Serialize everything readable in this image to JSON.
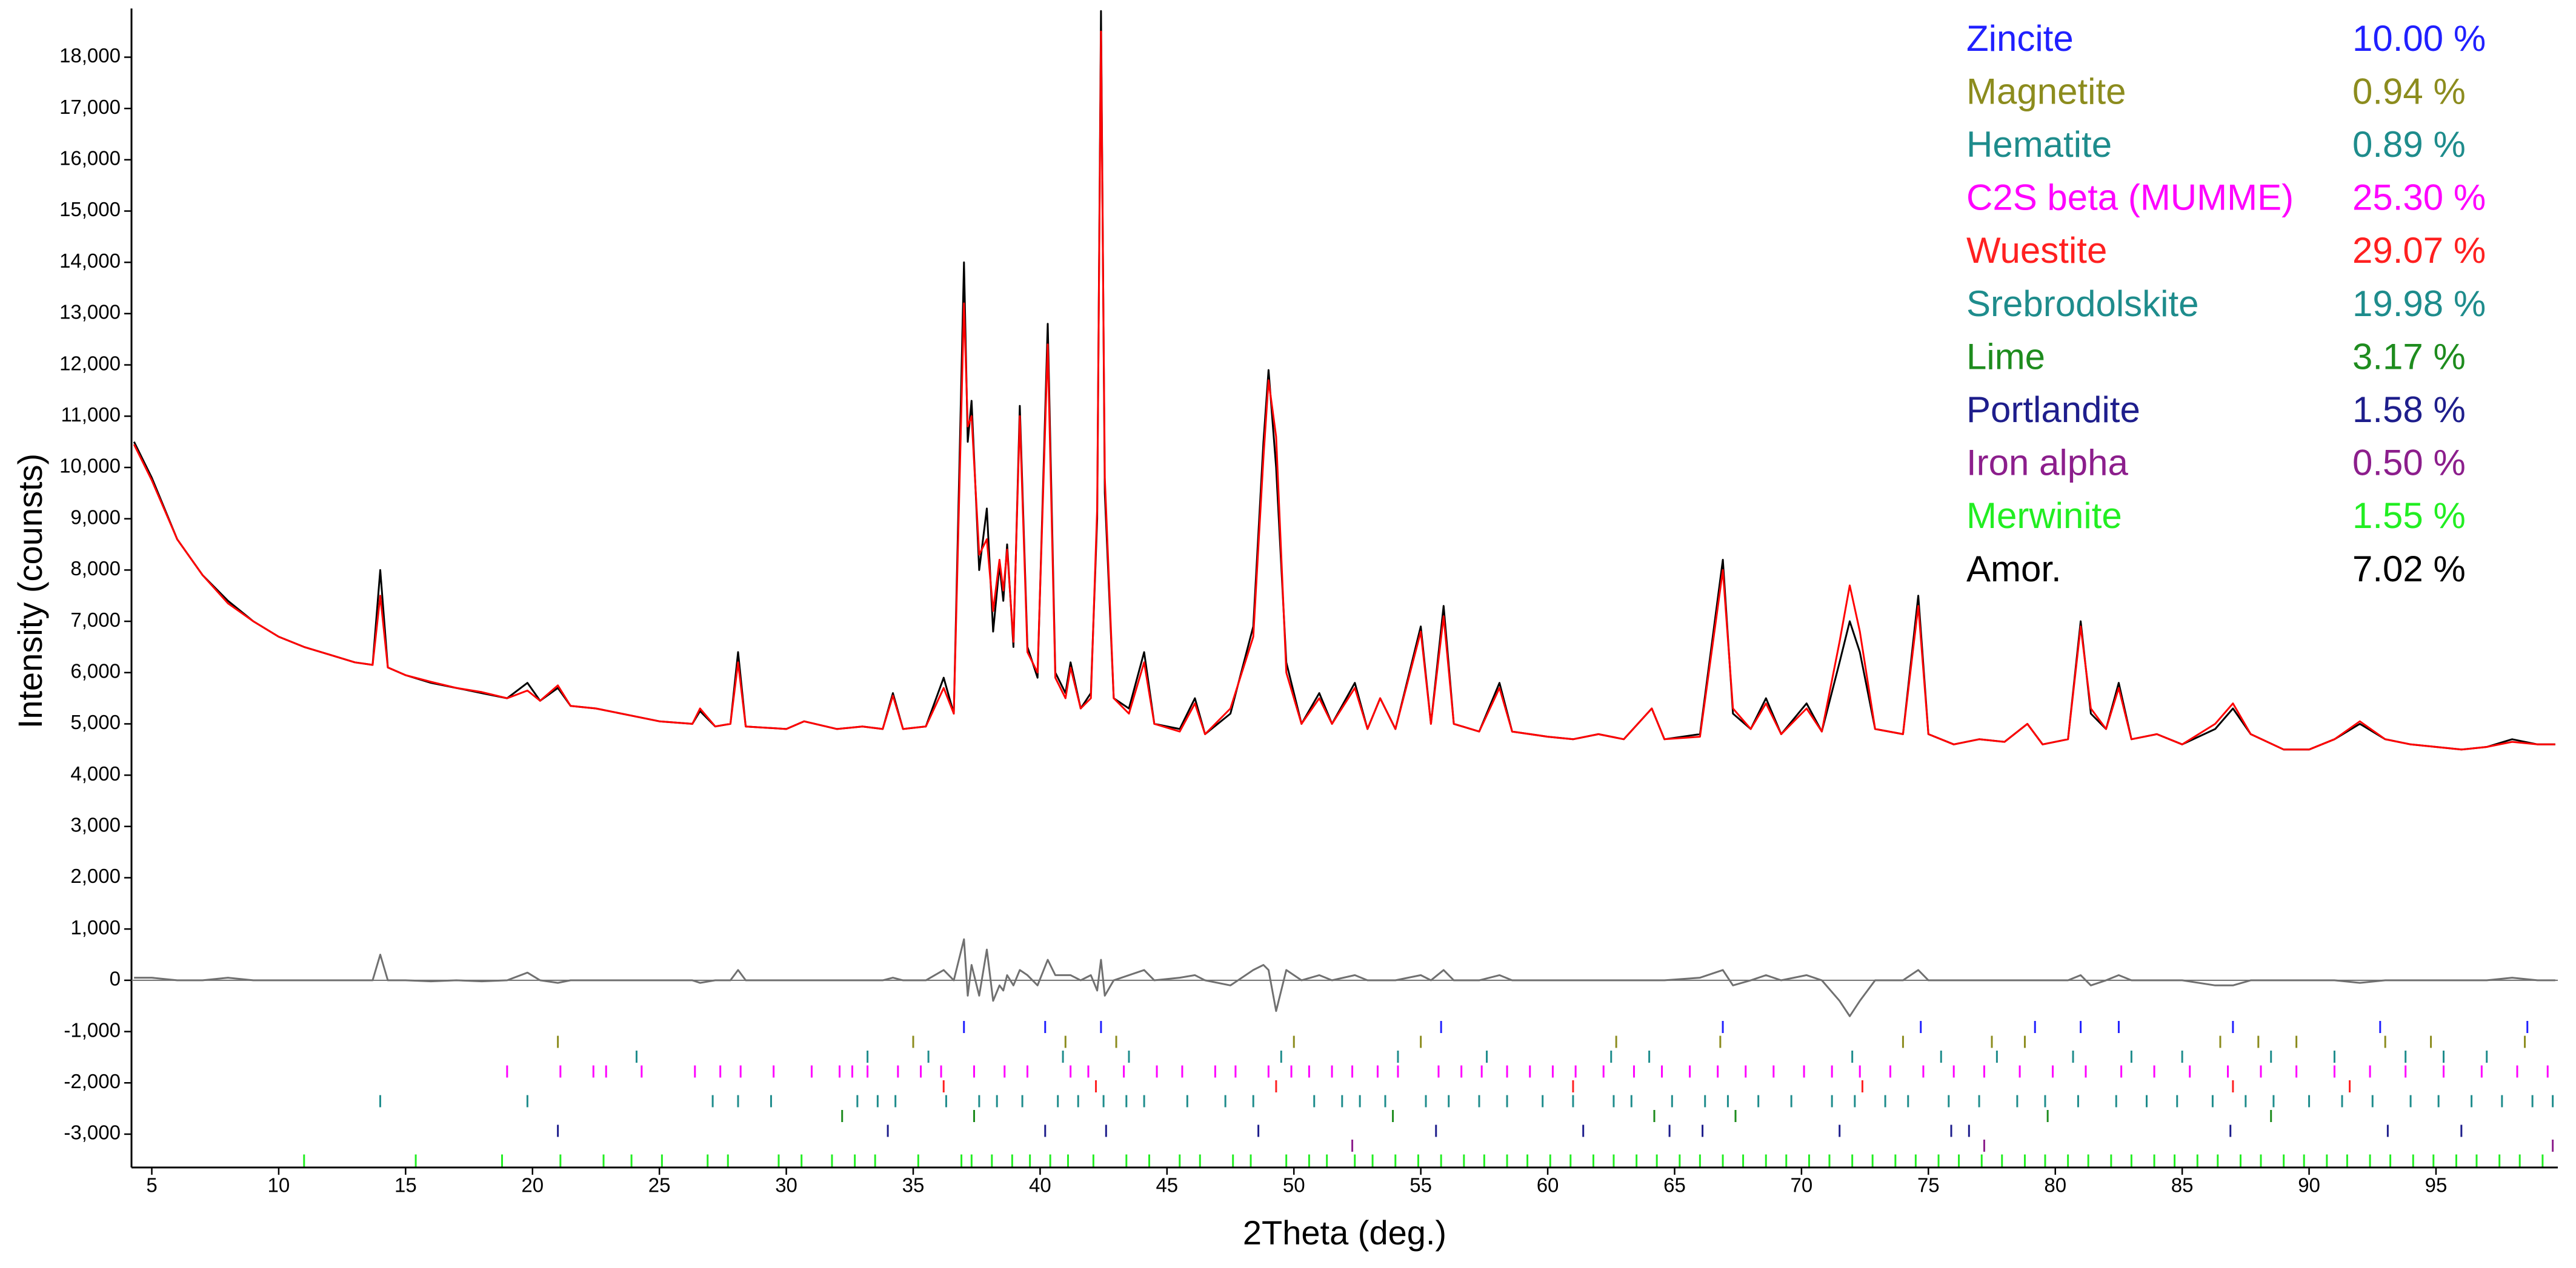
{
  "chart_data": {
    "type": "line",
    "xlabel": "2Theta (deg.)",
    "ylabel": "Intensity (counsts)",
    "xlim": [
      4.2,
      99.8
    ],
    "xticks": [
      5,
      10,
      15,
      20,
      25,
      30,
      35,
      40,
      45,
      50,
      55,
      60,
      65,
      70,
      75,
      80,
      85,
      90,
      95
    ],
    "ylim": [
      -3650,
      18950
    ],
    "yticks": [
      {
        "value": -3000,
        "label": "-3,000"
      },
      {
        "value": -2000,
        "label": "-2,000"
      },
      {
        "value": -1000,
        "label": "-1,000"
      },
      0,
      {
        "value": 1000,
        "label": "1,000"
      },
      {
        "value": 2000,
        "label": "2,000"
      },
      {
        "value": 3000,
        "label": "3,000"
      },
      {
        "value": 4000,
        "label": "4,000"
      },
      {
        "value": 5000,
        "label": "5,000"
      },
      {
        "value": 6000,
        "label": "6,000"
      },
      {
        "value": 7000,
        "label": "7,000"
      },
      {
        "value": 8000,
        "label": "8,000"
      },
      {
        "value": 9000,
        "label": "9,000"
      },
      {
        "value": 10000,
        "label": "10,000"
      },
      {
        "value": 11000,
        "label": "11,000"
      },
      {
        "value": 12000,
        "label": "12,000"
      },
      {
        "value": 13000,
        "label": "13,000"
      },
      {
        "value": 14000,
        "label": "14,000"
      },
      {
        "value": 15000,
        "label": "15,000"
      },
      {
        "value": 16000,
        "label": "16,000"
      },
      {
        "value": 17000,
        "label": "17,000"
      },
      {
        "value": 18000,
        "label": "18,000"
      }
    ],
    "x": [
      4.3,
      5,
      6,
      7,
      8,
      9,
      10,
      11,
      12,
      13,
      13.7,
      14.0,
      14.3,
      15,
      16,
      17,
      18,
      19,
      19.8,
      20.3,
      21.0,
      21.5,
      22.5,
      24,
      25,
      26.3,
      26.6,
      27.2,
      27.8,
      28.1,
      28.4,
      30,
      30.7,
      32,
      33,
      33.8,
      34.2,
      34.6,
      35.5,
      36.2,
      36.6,
      37.0,
      37.15,
      37.3,
      37.6,
      37.9,
      38.15,
      38.4,
      38.55,
      38.7,
      38.95,
      39.2,
      39.5,
      39.9,
      40.3,
      40.6,
      41.0,
      41.2,
      41.6,
      42.0,
      42.25,
      42.4,
      42.55,
      42.9,
      43.5,
      44.1,
      44.5,
      45.5,
      46.1,
      46.5,
      47.5,
      48.4,
      48.8,
      49.0,
      49.3,
      49.7,
      50.3,
      51.0,
      51.5,
      52.4,
      52.9,
      53.4,
      54.0,
      55.0,
      55.4,
      55.9,
      56.3,
      57.3,
      58.1,
      58.6,
      60,
      61,
      62,
      63,
      64.1,
      64.6,
      66,
      66.9,
      67.3,
      68,
      68.6,
      69.2,
      70.2,
      70.8,
      71.5,
      71.9,
      72.3,
      72.9,
      74.0,
      74.6,
      75.0,
      76,
      77,
      78,
      78.9,
      79.5,
      80.5,
      81.0,
      81.4,
      82.0,
      82.5,
      83.0,
      84.0,
      85.0,
      86.3,
      87.0,
      87.7,
      89,
      90,
      91,
      92.0,
      93,
      94,
      95,
      96,
      97,
      98,
      99,
      99.7
    ],
    "series": [
      {
        "color": "#000000",
        "values": [
          10500,
          9800,
          8600,
          7900,
          7400,
          7000,
          6700,
          6500,
          6350,
          6200,
          6150,
          8000,
          6100,
          5950,
          5800,
          5700,
          5600,
          5500,
          5800,
          5450,
          5700,
          5350,
          5300,
          5150,
          5050,
          5000,
          5250,
          4950,
          5000,
          6400,
          4950,
          4900,
          5050,
          4900,
          4950,
          4900,
          5600,
          4900,
          4950,
          5900,
          5200,
          14000,
          10500,
          11300,
          8000,
          9200,
          6800,
          8100,
          7400,
          8500,
          6500,
          11200,
          6500,
          5900,
          12800,
          6000,
          5600,
          6200,
          5300,
          5600,
          9000,
          18900,
          9500,
          5500,
          5300,
          6400,
          5000,
          4900,
          5500,
          4800,
          5200,
          6900,
          10500,
          11900,
          10000,
          6200,
          5000,
          5600,
          5000,
          5800,
          4900,
          5500,
          4900,
          6900,
          5000,
          7300,
          5000,
          4850,
          5800,
          4850,
          4750,
          4700,
          4800,
          4700,
          5300,
          4700,
          4800,
          8200,
          5200,
          4900,
          5500,
          4800,
          5400,
          4850,
          6200,
          7000,
          6400,
          4900,
          4800,
          7500,
          4800,
          4600,
          4700,
          4650,
          5000,
          4600,
          4700,
          7000,
          5200,
          4900,
          5800,
          4700,
          4800,
          4600,
          4900,
          5300,
          4800,
          4500,
          4500,
          4700,
          5000,
          4700,
          4600,
          4550,
          4500,
          4550,
          4700,
          4600,
          4600
        ]
      },
      {
        "color": "#ff0000",
        "values": [
          10450,
          9750,
          8600,
          7900,
          7350,
          7000,
          6700,
          6500,
          6350,
          6200,
          6150,
          7500,
          6100,
          5950,
          5820,
          5700,
          5620,
          5500,
          5650,
          5450,
          5750,
          5350,
          5300,
          5150,
          5050,
          5000,
          5300,
          4950,
          5000,
          6200,
          4950,
          4900,
          5050,
          4900,
          4950,
          4900,
          5550,
          4900,
          4950,
          5700,
          5200,
          13200,
          10800,
          11000,
          8300,
          8600,
          7200,
          8200,
          7600,
          8400,
          6600,
          11000,
          6400,
          6000,
          12400,
          5900,
          5500,
          6100,
          5300,
          5500,
          9200,
          18500,
          9800,
          5500,
          5200,
          6200,
          5000,
          4850,
          5400,
          4800,
          5300,
          6700,
          10200,
          11700,
          10600,
          6000,
          5000,
          5500,
          5000,
          5700,
          4900,
          5500,
          4900,
          6800,
          5000,
          7100,
          5000,
          4850,
          5700,
          4850,
          4750,
          4700,
          4800,
          4700,
          5300,
          4700,
          4750,
          8000,
          5300,
          4900,
          5400,
          4800,
          5300,
          4850,
          6600,
          7700,
          6800,
          4900,
          4800,
          7300,
          4800,
          4600,
          4700,
          4650,
          5000,
          4600,
          4700,
          6900,
          5300,
          4900,
          5700,
          4700,
          4800,
          4600,
          5000,
          5400,
          4800,
          4500,
          4500,
          4700,
          5050,
          4700,
          4600,
          4550,
          4500,
          4550,
          4650,
          4600,
          4600
        ]
      },
      {
        "color": "#707070",
        "values": [
          50,
          50,
          0,
          0,
          50,
          0,
          0,
          0,
          0,
          0,
          0,
          500,
          0,
          0,
          -20,
          0,
          -20,
          0,
          150,
          0,
          -50,
          0,
          0,
          0,
          0,
          0,
          -50,
          0,
          0,
          200,
          0,
          0,
          0,
          0,
          0,
          0,
          50,
          0,
          0,
          200,
          0,
          800,
          -300,
          300,
          -300,
          600,
          -400,
          -100,
          -200,
          100,
          -100,
          200,
          100,
          -100,
          400,
          100,
          100,
          100,
          0,
          100,
          -200,
          400,
          -300,
          0,
          100,
          200,
          0,
          50,
          100,
          0,
          -100,
          200,
          300,
          200,
          -600,
          200,
          0,
          100,
          0,
          100,
          0,
          0,
          0,
          100,
          0,
          200,
          0,
          0,
          100,
          0,
          0,
          0,
          0,
          0,
          0,
          0,
          50,
          200,
          -100,
          0,
          100,
          0,
          100,
          0,
          -400,
          -700,
          -400,
          0,
          0,
          200,
          0,
          0,
          0,
          0,
          0,
          0,
          0,
          100,
          -100,
          0,
          100,
          0,
          0,
          0,
          -100,
          -100,
          0,
          0,
          0,
          0,
          -50,
          0,
          0,
          0,
          0,
          0,
          50,
          0,
          0
        ]
      }
    ],
    "phases": [
      {
        "name": "Zincite",
        "color": "#2020ff",
        "value": 10.0,
        "value_label": "10.00 %",
        "positions": [
          37.0,
          40.2,
          42.4,
          55.8,
          66.9,
          74.7,
          79.2,
          81.0,
          82.5,
          87.0,
          92.8,
          98.6
        ]
      },
      {
        "name": "Magnetite",
        "color": "#8c8c1e",
        "value": 0.94,
        "value_label": "0.94 %",
        "positions": [
          21.0,
          35.0,
          41.0,
          43.0,
          50.0,
          55.0,
          62.7,
          66.8,
          74.0,
          77.5,
          78.8,
          86.5,
          88.0,
          89.5,
          93.0,
          94.8,
          98.5
        ]
      },
      {
        "name": "Hematite",
        "color": "#1e8c8c",
        "value": 0.89,
        "value_label": "0.89 %",
        "positions": [
          24.1,
          33.2,
          35.6,
          40.9,
          43.5,
          49.5,
          54.1,
          57.6,
          62.5,
          64.0,
          72.0,
          75.5,
          77.7,
          80.7,
          83.0,
          85.0,
          88.5,
          91.0,
          93.8,
          95.3,
          97.0
        ]
      },
      {
        "name": "C2S beta (MUMME)",
        "color": "#ff00ff",
        "value": 25.3,
        "value_label": "25.30 %",
        "positions": [
          19.0,
          21.1,
          22.4,
          22.9,
          24.3,
          26.4,
          27.4,
          28.2,
          29.5,
          31.0,
          32.1,
          32.6,
          33.2,
          34.4,
          35.3,
          36.1,
          37.4,
          38.6,
          39.5,
          41.2,
          41.9,
          43.3,
          44.6,
          45.6,
          46.9,
          47.7,
          49.0,
          49.9,
          50.6,
          51.5,
          52.3,
          53.3,
          54.1,
          55.7,
          56.6,
          57.4,
          58.4,
          59.3,
          60.2,
          61.1,
          62.2,
          63.4,
          64.5,
          65.6,
          66.7,
          67.8,
          68.9,
          70.1,
          71.2,
          72.3,
          73.5,
          74.8,
          76.0,
          77.2,
          78.6,
          79.9,
          81.2,
          82.6,
          83.9,
          85.3,
          86.8,
          88.1,
          89.5,
          91.0,
          92.4,
          93.8,
          95.3,
          96.8,
          98.2,
          99.4
        ]
      },
      {
        "name": "Wuestite",
        "color": "#ff2020",
        "value": 29.07,
        "value_label": "29.07 %",
        "positions": [
          36.2,
          42.2,
          49.3,
          61.0,
          72.4,
          87.0,
          91.6
        ]
      },
      {
        "name": "Srebrodolskite",
        "color": "#1e8c8c",
        "value": 19.98,
        "value_label": "19.98 %",
        "positions": [
          14.0,
          19.8,
          27.1,
          28.1,
          29.4,
          32.8,
          33.6,
          34.3,
          36.3,
          37.6,
          38.3,
          39.3,
          40.7,
          41.5,
          42.5,
          43.4,
          44.1,
          45.8,
          47.3,
          48.4,
          50.8,
          51.9,
          52.6,
          53.6,
          55.2,
          56.1,
          57.3,
          58.4,
          59.8,
          61.0,
          62.6,
          63.3,
          64.9,
          66.2,
          67.1,
          68.3,
          69.6,
          71.2,
          72.1,
          73.3,
          74.2,
          75.8,
          77.0,
          78.5,
          79.6,
          80.9,
          82.4,
          83.6,
          84.8,
          86.2,
          87.5,
          88.6,
          90.0,
          91.3,
          92.5,
          94.0,
          95.1,
          96.4,
          97.6,
          98.8,
          99.6
        ]
      },
      {
        "name": "Lime",
        "color": "#1e8c1e",
        "value": 3.17,
        "value_label": "3.17 %",
        "positions": [
          32.2,
          37.4,
          53.9,
          64.2,
          67.4,
          79.7,
          88.5
        ]
      },
      {
        "name": "Portlandite",
        "color": "#1e1e8c",
        "value": 1.58,
        "value_label": "1.58 %",
        "positions": [
          21.0,
          34.0,
          40.2,
          42.6,
          48.6,
          55.6,
          61.4,
          64.8,
          66.1,
          71.5,
          75.9,
          76.6,
          86.9,
          93.1,
          96.0
        ]
      },
      {
        "name": "Iron alpha",
        "color": "#8c1e8c",
        "value": 0.5,
        "value_label": "0.50 %",
        "positions": [
          52.3,
          77.2,
          99.6
        ]
      },
      {
        "name": "Merwinite",
        "color": "#22ee22",
        "value": 1.55,
        "value_label": "1.55 %",
        "positions": [
          11.0,
          15.4,
          18.8,
          21.1,
          22.8,
          23.9,
          25.1,
          26.9,
          27.7,
          29.7,
          30.6,
          31.8,
          32.7,
          33.5,
          35.2,
          36.9,
          37.3,
          38.1,
          38.9,
          39.6,
          40.4,
          41.1,
          42.1,
          43.4,
          44.3,
          45.5,
          46.3,
          47.6,
          48.3,
          49.7,
          50.6,
          51.3,
          52.4,
          53.1,
          54.0,
          54.9,
          55.8,
          56.7,
          57.5,
          58.4,
          59.2,
          60.1,
          60.9,
          61.8,
          62.6,
          63.5,
          64.3,
          65.2,
          66.0,
          66.9,
          67.7,
          68.6,
          69.4,
          70.3,
          71.1,
          72.0,
          72.8,
          73.7,
          74.5,
          75.4,
          76.2,
          77.1,
          77.9,
          78.8,
          79.6,
          80.5,
          81.3,
          82.2,
          83.0,
          83.9,
          84.7,
          85.6,
          86.4,
          87.3,
          88.1,
          89.0,
          89.8,
          90.7,
          91.5,
          92.4,
          93.2,
          94.1,
          94.9,
          95.8,
          96.6,
          97.5,
          98.3,
          99.2
        ]
      },
      {
        "name": "Amor.",
        "color": "#000000",
        "value": 7.02,
        "value_label": "7.02 %"
      }
    ]
  }
}
